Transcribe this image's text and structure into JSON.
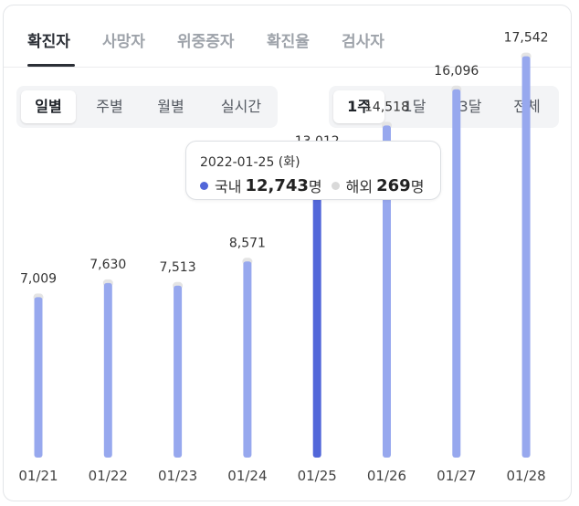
{
  "tabs": [
    {
      "label": "확진자",
      "active": true
    },
    {
      "label": "사망자",
      "active": false
    },
    {
      "label": "위중증자",
      "active": false
    },
    {
      "label": "확진율",
      "active": false
    },
    {
      "label": "검사자",
      "active": false
    }
  ],
  "period_toggle": [
    {
      "label": "일별",
      "active": true
    },
    {
      "label": "주별",
      "active": false
    },
    {
      "label": "월별",
      "active": false
    },
    {
      "label": "실시간",
      "active": false
    }
  ],
  "range_toggle": [
    {
      "label": "1주",
      "active": true
    },
    {
      "label": "1달",
      "active": false
    },
    {
      "label": "3달",
      "active": false
    },
    {
      "label": "전체",
      "active": false
    }
  ],
  "tooltip": {
    "date": "2022-01-25 (화)",
    "domestic_label": "국내",
    "domestic_value": "12,743",
    "overseas_label": "해외",
    "overseas_value": "269",
    "unit": "명"
  },
  "colors": {
    "bar": "#97a8ee",
    "bar_selected": "#5267d9",
    "bar_cap": "#e4e4e4",
    "domestic_dot": "#5267d9",
    "overseas_dot": "#d9d9d9"
  },
  "chart_data": {
    "type": "bar",
    "categories": [
      "01/21",
      "01/22",
      "01/23",
      "01/24",
      "01/25",
      "01/26",
      "01/27",
      "01/28"
    ],
    "values": [
      7009,
      7630,
      7513,
      8571,
      13012,
      14518,
      16096,
      17542
    ],
    "value_labels": [
      "7,009",
      "7,630",
      "7,513",
      "8,571",
      "13,012",
      "14,518",
      "16,096",
      "17,542"
    ],
    "selected_index": 4,
    "ylim": [
      0,
      20000
    ],
    "grid": false
  }
}
